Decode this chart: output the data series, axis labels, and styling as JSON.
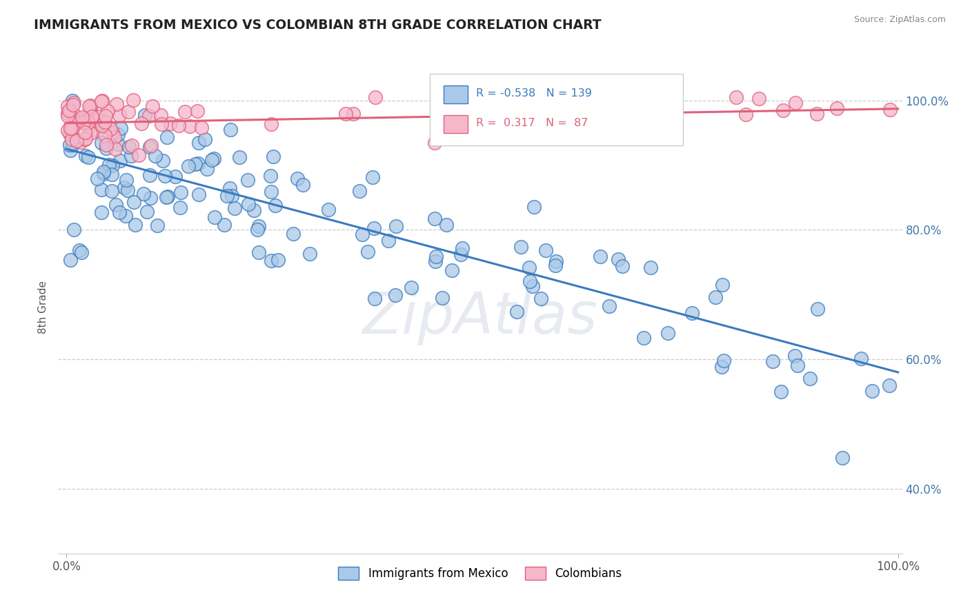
{
  "title": "IMMIGRANTS FROM MEXICO VS COLOMBIAN 8TH GRADE CORRELATION CHART",
  "source": "Source: ZipAtlas.com",
  "ylabel": "8th Grade",
  "r_mexico": -0.538,
  "n_mexico": 139,
  "r_colombian": 0.317,
  "n_colombian": 87,
  "color_mexico": "#aac9e8",
  "color_colombian": "#f5b8cb",
  "line_mexico": "#3a7abf",
  "line_colombian": "#e0607a",
  "background_color": "#ffffff",
  "grid_color": "#cccccc",
  "watermark": "ZipAtlas",
  "legend_r_color": "#3a7abf",
  "legend_n_color": "#333333",
  "intercept_mex": 0.925,
  "slope_mex": -0.345,
  "intercept_col": 0.965,
  "slope_col": 0.022
}
